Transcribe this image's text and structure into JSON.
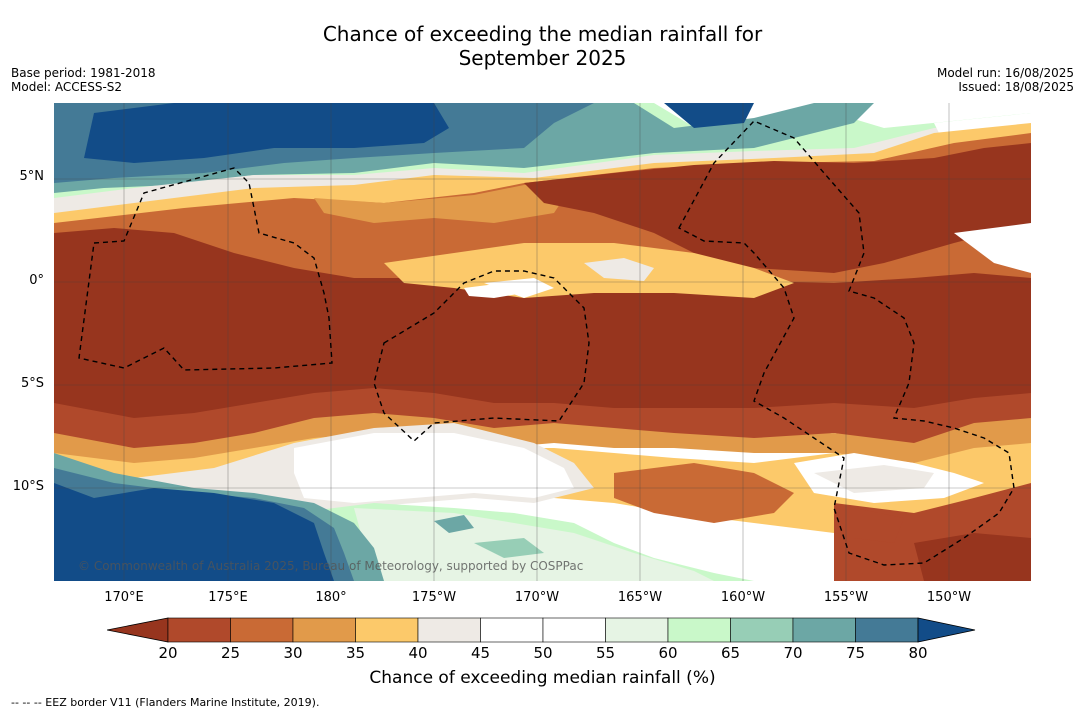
{
  "title_line1": "Chance of exceeding the median rainfall for",
  "title_line2": "September 2025",
  "meta_left": {
    "base_period": "Base period: 1981-2018",
    "model": "Model: ACCESS-S2"
  },
  "meta_right": {
    "model_run": "Model run: 16/08/2025",
    "issued": "Issued: 18/08/2025"
  },
  "lat_labels": [
    "5°N",
    "0°",
    "5°S",
    "10°S"
  ],
  "lon_labels": [
    "170°E",
    "175°E",
    "180°",
    "175°W",
    "170°W",
    "165°W",
    "160°W",
    "155°W",
    "150°W"
  ],
  "copyright": "© Commonwealth of Australia 2025, Bureau of Meteorology, supported by COSPPac",
  "colorbar": {
    "ticks": [
      "20",
      "25",
      "30",
      "35",
      "40",
      "45",
      "50",
      "55",
      "60",
      "65",
      "70",
      "75",
      "80"
    ],
    "colors": [
      "#97351e",
      "#b0492b",
      "#c96a35",
      "#e19a4a",
      "#fcc96a",
      "#eeeae5",
      "#ffffff",
      "#ffffff",
      "#e6f4e4",
      "#c9f8c9",
      "#97ceb6",
      "#6ca7a5",
      "#447a96",
      "#124c88"
    ],
    "label": "Chance of exceeding median rainfall (%)"
  },
  "footnote": "--  --  -- EEZ border V11 (Flanders Marine Institute, 2019)."
}
